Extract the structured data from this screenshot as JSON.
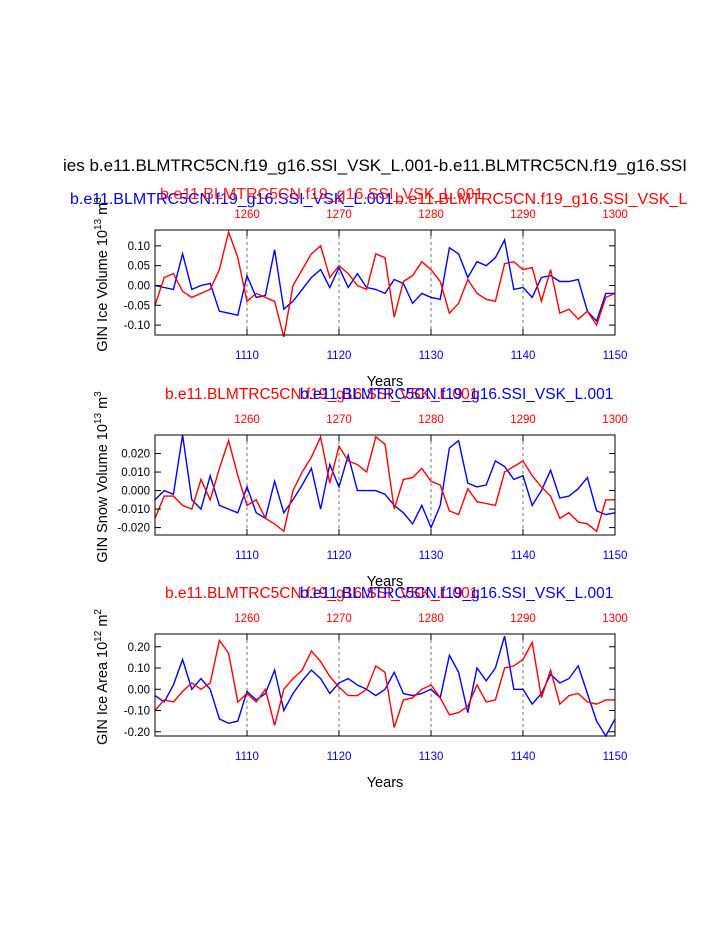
{
  "page": {
    "main_title": "ies b.e11.BLMTRC5CN.f19_g16.SSI_VSK_L.001-b.e11.BLMTRC5CN.f19_g16.SSI",
    "top_blue_title": "b.e11.BLMTRC5CN.f19_g16.SSI_VSK_L.001",
    "top_red_title_a": "b.e11.BLMTRC5CN.f19_g16.SSI_VSK_L.001",
    "top_red_title_b": "b.e11.BLMTRC5CN.f19_g16.SSI_VSK_L"
  },
  "colors": {
    "series_a": "#ff0000",
    "series_b": "#0000ff",
    "axis": "#000000",
    "grid": "#555555"
  },
  "chart_data": [
    {
      "type": "line",
      "ylabel": "GIN Ice Volume",
      "yunit_base": "10",
      "yunit_exp": "13",
      "yunit_suffix": "m",
      "yunit_suffix_exp": "3",
      "xlabel": "Years",
      "top_title_red": "b.e11.BLMTRC5CN.f19_g16.SSI_VSK_L.001",
      "top_title_blue": "",
      "ylim": [
        -0.125,
        0.14
      ],
      "yticks": [
        -0.1,
        -0.05,
        0.0,
        0.05,
        0.1
      ],
      "ytick_labels": [
        "-0.10",
        "-0.05",
        "0.00",
        "0.05",
        "0.10"
      ],
      "bottom_axis": {
        "range": [
          1100,
          1150
        ],
        "ticks": [
          1110,
          1120,
          1130,
          1140,
          1150
        ],
        "color": "#0000ff"
      },
      "top_axis": {
        "range": [
          1250,
          1300
        ],
        "ticks": [
          1260,
          1270,
          1280,
          1290,
          1300
        ],
        "color": "#ff0000"
      },
      "series": [
        {
          "name": "b.e11.BLMTRC5CN.f19_g16.SSI_VSK_L.001",
          "color": "#0000ff",
          "x": [
            1100,
            1101,
            1102,
            1103,
            1104,
            1105,
            1106,
            1107,
            1108,
            1109,
            1110,
            1111,
            1112,
            1113,
            1114,
            1115,
            1116,
            1117,
            1118,
            1119,
            1120,
            1121,
            1122,
            1123,
            1124,
            1125,
            1126,
            1127,
            1128,
            1129,
            1130,
            1131,
            1132,
            1133,
            1134,
            1135,
            1136,
            1137,
            1138,
            1139,
            1140,
            1141,
            1142,
            1143,
            1144,
            1145,
            1146,
            1147,
            1148,
            1149,
            1150
          ],
          "values": [
            0.0,
            -0.005,
            -0.01,
            0.08,
            -0.01,
            0.0,
            0.005,
            -0.065,
            -0.07,
            -0.075,
            0.025,
            -0.03,
            -0.025,
            0.09,
            -0.06,
            -0.04,
            -0.01,
            0.02,
            0.04,
            -0.005,
            0.045,
            -0.005,
            0.03,
            -0.005,
            -0.01,
            -0.02,
            0.015,
            0.005,
            -0.045,
            -0.02,
            -0.03,
            -0.035,
            0.095,
            0.08,
            0.02,
            0.06,
            0.05,
            0.07,
            0.115,
            -0.01,
            -0.005,
            -0.03,
            0.02,
            0.025,
            0.01,
            0.01,
            0.015,
            -0.065,
            -0.09,
            -0.02,
            -0.02
          ]
        },
        {
          "name": "b.e11.BLMTRC5CN.f19_g16.SSI_VSK_L.001 (1250-1300)",
          "color": "#ff0000",
          "x": [
            1100,
            1101,
            1102,
            1103,
            1104,
            1105,
            1106,
            1107,
            1108,
            1109,
            1110,
            1111,
            1112,
            1113,
            1114,
            1115,
            1116,
            1117,
            1118,
            1119,
            1120,
            1121,
            1122,
            1123,
            1124,
            1125,
            1126,
            1127,
            1128,
            1129,
            1130,
            1131,
            1132,
            1133,
            1134,
            1135,
            1136,
            1137,
            1138,
            1139,
            1140,
            1141,
            1142,
            1143,
            1144,
            1145,
            1146,
            1147,
            1148,
            1149,
            1150
          ],
          "values": [
            -0.05,
            0.02,
            0.03,
            -0.015,
            -0.03,
            -0.02,
            -0.01,
            0.04,
            0.135,
            0.07,
            -0.04,
            -0.02,
            -0.03,
            -0.04,
            -0.13,
            0.0,
            0.04,
            0.08,
            0.1,
            0.02,
            0.05,
            0.03,
            0.0,
            -0.01,
            0.08,
            0.07,
            -0.08,
            0.01,
            0.025,
            0.06,
            0.04,
            0.01,
            -0.07,
            -0.045,
            0.015,
            -0.02,
            -0.035,
            -0.04,
            0.055,
            0.06,
            0.04,
            0.045,
            -0.04,
            0.04,
            -0.07,
            -0.06,
            -0.085,
            -0.065,
            -0.1,
            -0.03,
            -0.02
          ]
        }
      ]
    },
    {
      "type": "line",
      "ylabel": "GIN Snow Volume",
      "yunit_base": "10",
      "yunit_exp": "13",
      "yunit_suffix": "m",
      "yunit_suffix_exp": "3",
      "xlabel": "Years",
      "top_title_red": "b.e11.BLMTRC5CN.f19_g16.SSI_VSK_L.001",
      "top_title_blue": "b.e11.BLMTRC5CN.f19_g16.SSI_VSK_L.001",
      "ylim": [
        -0.024,
        0.03
      ],
      "yticks": [
        -0.02,
        -0.01,
        0.0,
        0.01,
        0.02
      ],
      "ytick_labels": [
        "-0.020",
        "-0.010",
        "0.000",
        "0.010",
        "0.020"
      ],
      "bottom_axis": {
        "range": [
          1100,
          1150
        ],
        "ticks": [
          1110,
          1120,
          1130,
          1140,
          1150
        ],
        "color": "#0000ff"
      },
      "top_axis": {
        "range": [
          1250,
          1300
        ],
        "ticks": [
          1260,
          1270,
          1280,
          1290,
          1300
        ],
        "color": "#ff0000"
      },
      "series": [
        {
          "name": "b.e11.BLMTRC5CN.f19_g16.SSI_VSK_L.001",
          "color": "#0000ff",
          "x": [
            1100,
            1101,
            1102,
            1103,
            1104,
            1105,
            1106,
            1107,
            1108,
            1109,
            1110,
            1111,
            1112,
            1113,
            1114,
            1115,
            1116,
            1117,
            1118,
            1119,
            1120,
            1121,
            1122,
            1123,
            1124,
            1125,
            1126,
            1127,
            1128,
            1129,
            1130,
            1131,
            1132,
            1133,
            1134,
            1135,
            1136,
            1137,
            1138,
            1139,
            1140,
            1141,
            1142,
            1143,
            1144,
            1145,
            1146,
            1147,
            1148,
            1149,
            1150
          ],
          "values": [
            -0.005,
            0.0,
            -0.002,
            0.03,
            -0.005,
            -0.01,
            0.008,
            -0.008,
            -0.01,
            -0.012,
            0.002,
            -0.012,
            -0.015,
            0.005,
            -0.012,
            -0.005,
            0.003,
            0.012,
            -0.01,
            0.014,
            0.002,
            0.019,
            0.0,
            0.0,
            0.0,
            -0.002,
            -0.008,
            -0.012,
            -0.018,
            -0.008,
            -0.02,
            -0.008,
            0.023,
            0.027,
            0.004,
            0.002,
            0.003,
            0.016,
            0.013,
            0.006,
            0.008,
            -0.008,
            0.0,
            0.011,
            -0.004,
            -0.003,
            0.001,
            0.007,
            -0.011,
            -0.013,
            -0.012
          ]
        },
        {
          "name": "b.e11.BLMTRC5CN.f19_g16.SSI_VSK_L.001 (1250-1300)",
          "color": "#ff0000",
          "x": [
            1100,
            1101,
            1102,
            1103,
            1104,
            1105,
            1106,
            1107,
            1108,
            1109,
            1110,
            1111,
            1112,
            1113,
            1114,
            1115,
            1116,
            1117,
            1118,
            1119,
            1120,
            1121,
            1122,
            1123,
            1124,
            1125,
            1126,
            1127,
            1128,
            1129,
            1130,
            1131,
            1132,
            1133,
            1134,
            1135,
            1136,
            1137,
            1138,
            1139,
            1140,
            1141,
            1142,
            1143,
            1144,
            1145,
            1146,
            1147,
            1148,
            1149,
            1150
          ],
          "values": [
            -0.015,
            -0.003,
            -0.003,
            -0.008,
            -0.01,
            0.006,
            -0.005,
            0.012,
            0.027,
            0.008,
            -0.008,
            -0.005,
            -0.015,
            -0.018,
            -0.022,
            0.0,
            0.01,
            0.018,
            0.029,
            0.004,
            0.024,
            0.016,
            0.014,
            0.01,
            0.029,
            0.025,
            -0.01,
            0.006,
            0.007,
            0.012,
            0.005,
            0.003,
            -0.011,
            -0.013,
            0.001,
            -0.006,
            -0.007,
            -0.008,
            0.01,
            0.013,
            0.016,
            0.008,
            0.002,
            -0.003,
            -0.015,
            -0.012,
            -0.017,
            -0.018,
            -0.022,
            -0.005,
            -0.005
          ]
        }
      ]
    },
    {
      "type": "line",
      "ylabel": "GIN Ice Area",
      "yunit_base": "10",
      "yunit_exp": "12",
      "yunit_suffix": "m",
      "yunit_suffix_exp": "2",
      "xlabel": "Years",
      "top_title_red": "b.e11.BLMTRC5CN.f19_g16.SSI_VSK_L.001",
      "top_title_blue": "b.e11.BLMTRC5CN.f19_g16.SSI_VSK_L.001",
      "ylim": [
        -0.22,
        0.26
      ],
      "yticks": [
        -0.2,
        -0.1,
        0.0,
        0.1,
        0.2
      ],
      "ytick_labels": [
        "-0.20",
        "-0.10",
        "0.00",
        "0.10",
        "0.20"
      ],
      "bottom_axis": {
        "range": [
          1100,
          1150
        ],
        "ticks": [
          1110,
          1120,
          1130,
          1140,
          1150
        ],
        "color": "#0000ff"
      },
      "top_axis": {
        "range": [
          1250,
          1300
        ],
        "ticks": [
          1260,
          1270,
          1280,
          1290,
          1300
        ],
        "color": "#ff0000"
      },
      "series": [
        {
          "name": "b.e11.BLMTRC5CN.f19_g16.SSI_VSK_L.001",
          "color": "#0000ff",
          "x": [
            1100,
            1101,
            1102,
            1103,
            1104,
            1105,
            1106,
            1107,
            1108,
            1109,
            1110,
            1111,
            1112,
            1113,
            1114,
            1115,
            1116,
            1117,
            1118,
            1119,
            1120,
            1121,
            1122,
            1123,
            1124,
            1125,
            1126,
            1127,
            1128,
            1129,
            1130,
            1131,
            1132,
            1133,
            1134,
            1135,
            1136,
            1137,
            1138,
            1139,
            1140,
            1141,
            1142,
            1143,
            1144,
            1145,
            1146,
            1147,
            1148,
            1149,
            1150
          ],
          "values": [
            -0.03,
            -0.06,
            0.02,
            0.14,
            0.0,
            0.05,
            0.0,
            -0.14,
            -0.16,
            -0.15,
            -0.01,
            -0.05,
            -0.02,
            0.09,
            -0.1,
            -0.02,
            0.04,
            0.09,
            0.05,
            -0.02,
            0.03,
            0.05,
            0.02,
            0.0,
            -0.03,
            0.0,
            0.08,
            -0.02,
            -0.03,
            -0.02,
            0.0,
            -0.04,
            0.16,
            0.08,
            -0.11,
            0.1,
            0.04,
            0.1,
            0.25,
            0.0,
            0.0,
            -0.07,
            -0.02,
            0.07,
            0.03,
            0.05,
            0.11,
            -0.02,
            -0.15,
            -0.22,
            -0.14
          ]
        },
        {
          "name": "b.e11.BLMTRC5CN.f19_g16.SSI_VSK_L.001 (1250-1300)",
          "color": "#ff0000",
          "x": [
            1100,
            1101,
            1102,
            1103,
            1104,
            1105,
            1106,
            1107,
            1108,
            1109,
            1110,
            1111,
            1112,
            1113,
            1114,
            1115,
            1116,
            1117,
            1118,
            1119,
            1120,
            1121,
            1122,
            1123,
            1124,
            1125,
            1126,
            1127,
            1128,
            1129,
            1130,
            1131,
            1132,
            1133,
            1134,
            1135,
            1136,
            1137,
            1138,
            1139,
            1140,
            1141,
            1142,
            1143,
            1144,
            1145,
            1146,
            1147,
            1148,
            1149,
            1150
          ],
          "values": [
            -0.1,
            -0.05,
            -0.06,
            -0.01,
            0.03,
            0.0,
            0.03,
            0.23,
            0.17,
            -0.06,
            -0.02,
            -0.06,
            0.0,
            -0.17,
            0.0,
            0.05,
            0.09,
            0.18,
            0.13,
            0.06,
            0.01,
            -0.03,
            -0.03,
            0.0,
            0.11,
            0.08,
            -0.18,
            -0.05,
            -0.04,
            0.0,
            0.02,
            -0.04,
            -0.12,
            -0.11,
            -0.08,
            0.02,
            -0.06,
            -0.05,
            0.1,
            0.11,
            0.14,
            0.22,
            -0.04,
            0.09,
            -0.07,
            -0.03,
            -0.02,
            -0.06,
            -0.07,
            -0.05,
            -0.05
          ]
        }
      ]
    }
  ]
}
